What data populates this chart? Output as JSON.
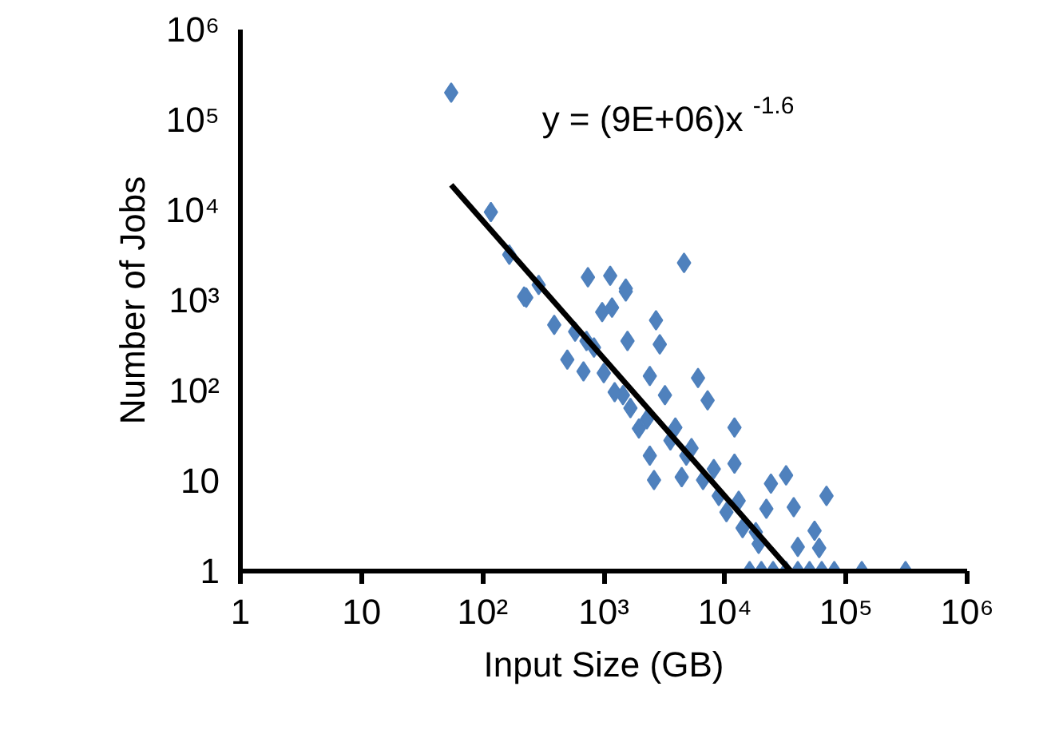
{
  "chart_data": {
    "type": "scatter",
    "xlabel": "Input Size (GB)",
    "ylabel": "Number of Jobs",
    "log": "xy",
    "grid": false,
    "xlim": [
      1,
      1000000
    ],
    "ylim": [
      1,
      1000000
    ],
    "xticks": [
      1,
      10,
      {
        "value": 100,
        "label": "10²"
      },
      {
        "value": 1000,
        "label": "10³"
      },
      {
        "value": 10000,
        "label": "10⁴"
      },
      {
        "value": 100000,
        "label": "10⁵"
      },
      {
        "value": 1000000,
        "label": "10⁶"
      }
    ],
    "yticks": [
      1,
      10,
      {
        "value": 100,
        "label": "10²"
      },
      {
        "value": 1000,
        "label": "10³"
      },
      {
        "value": 10000,
        "label": "10⁴"
      },
      {
        "value": 100000,
        "label": "10⁵"
      },
      {
        "value": 1000000,
        "label": "10⁶"
      }
    ],
    "annotations": [
      "y = (9E+06)x$^{-1.6}$"
    ],
    "series": [
      {
        "marker": "diamond",
        "color": "#4f81bd",
        "x": [
          55,
          117,
          166,
          229,
          290,
          740,
          1130,
          1520,
          4600,
          2700,
          1570,
          2900,
          390,
          580,
          970,
          1170,
          720,
          1000,
          2400,
          6000,
          220,
          1520,
          830,
          1440,
          3200,
          7200,
          1950,
          3900,
          12000,
          2400,
          5300,
          2600,
          4400,
          8100,
          12000,
          24000,
          32000,
          69000,
          13000,
          22000,
          37000,
          18000,
          55000,
          40000,
          60000,
          500,
          680,
          1230,
          1660,
          2270,
          3550,
          4800,
          6600,
          8900,
          10300,
          14000,
          19000,
          16000,
          20000,
          25000,
          32000,
          40000,
          50000,
          63000,
          80000,
          135000,
          310000
        ],
        "values": [
          200000,
          9500,
          3200,
          1070,
          1480,
          1800,
          1870,
          1350,
          2600,
          600,
          355,
          325,
          535,
          450,
          740,
          830,
          355,
          156,
          145,
          138,
          1100,
          1250,
          300,
          89,
          89,
          78,
          38,
          39,
          39,
          19,
          23,
          10.2,
          11,
          13.5,
          15.5,
          9.3,
          11.5,
          6.8,
          6,
          4.9,
          5.1,
          2.7,
          2.8,
          1.85,
          1.8,
          220,
          163,
          96,
          64,
          48,
          28,
          19,
          10.2,
          6.8,
          4.5,
          3,
          2,
          1,
          1,
          1,
          1,
          1,
          1,
          1,
          1,
          1,
          1
        ]
      },
      {
        "type": "line",
        "marker": "none",
        "color": "#000000",
        "x": [
          55,
          35000
        ],
        "values": [
          19000,
          1
        ]
      }
    ]
  }
}
